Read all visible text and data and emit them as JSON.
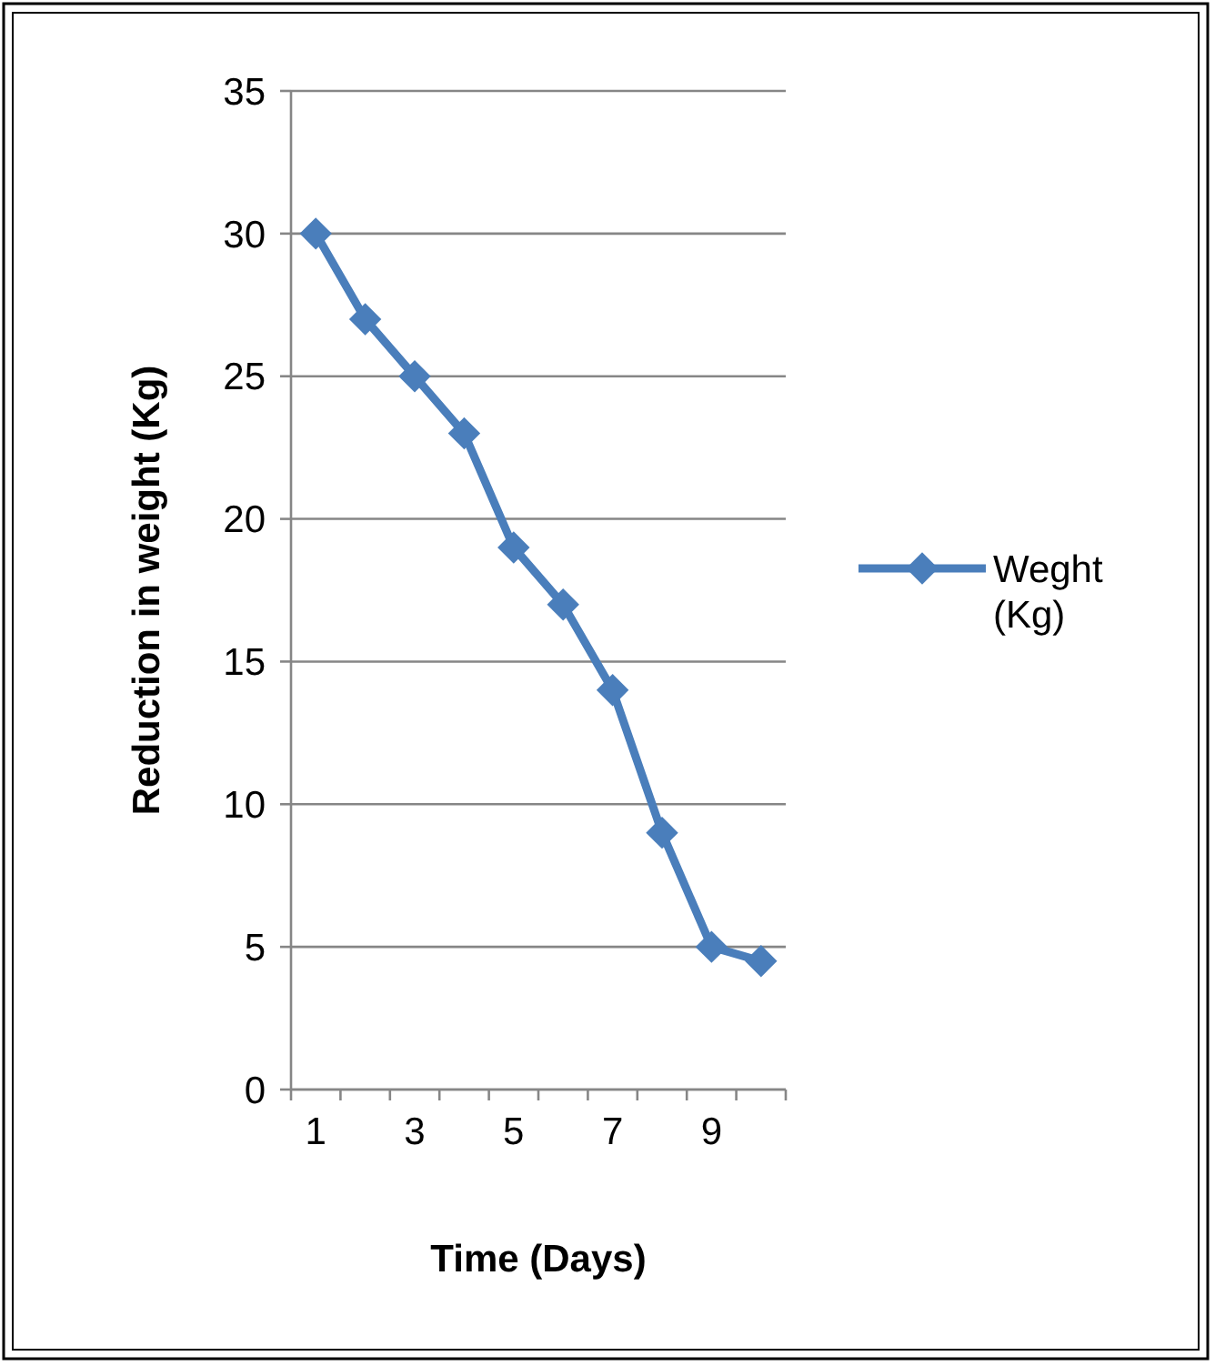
{
  "chart_data": {
    "type": "line",
    "xlabel": "Time (Days)",
    "ylabel": "Reduction in weight (Kg)",
    "categories": [
      "1",
      null,
      "3",
      null,
      "5",
      null,
      "7",
      null,
      "9",
      null
    ],
    "series": [
      {
        "name": "Weght (Kg)",
        "color": "#4a7ebb",
        "values": [
          30,
          27,
          25,
          23,
          19,
          17,
          14,
          9,
          5,
          4.5
        ]
      }
    ],
    "ylim": [
      0,
      35
    ],
    "yticks": [
      0,
      5,
      10,
      15,
      20,
      25,
      30,
      35
    ],
    "grid": "y",
    "legend": "right",
    "marker": "diamond",
    "line_style": "solid"
  }
}
